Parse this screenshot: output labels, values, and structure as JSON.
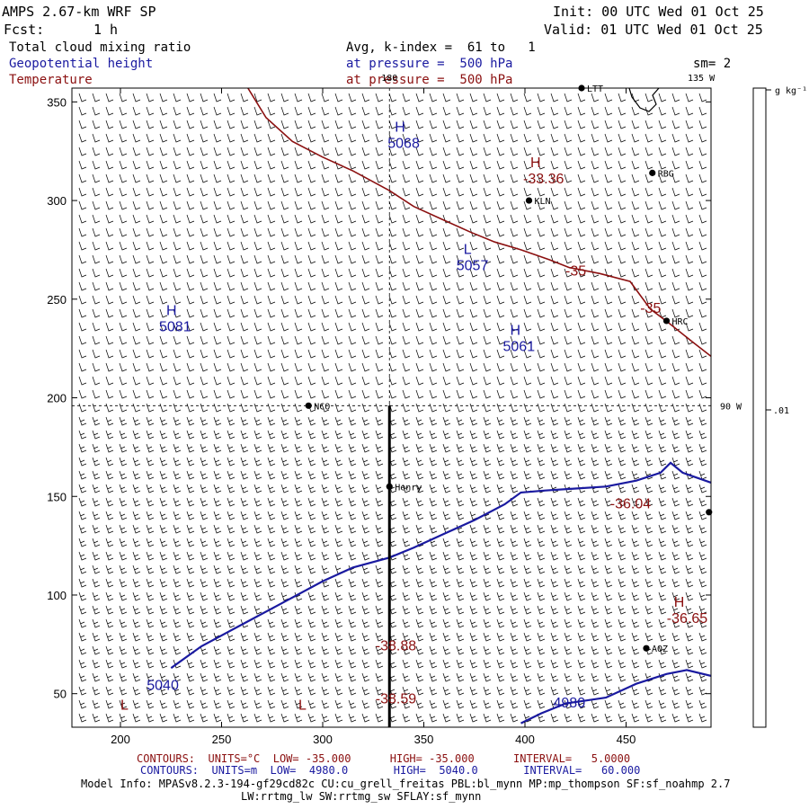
{
  "header": {
    "model_title": "AMPS 2.67-km WRF SP",
    "init": "Init: 00 UTC Wed 01 Oct 25",
    "fcst_label": "Fcst:",
    "fcst_value": "1 h",
    "valid": "Valid: 01 UTC Wed 01 Oct 25"
  },
  "fields": {
    "cloud_label": "Total cloud mixing ratio",
    "cloud_desc": "Avg, k-index =  61 to   1",
    "height_label": "Geopotential height",
    "height_desc": "at pressure =  500 hPa",
    "temp_label": "Temperature",
    "temp_desc": "at pressure =  500 hPa",
    "sm_label": "sm= 2"
  },
  "colorbar": {
    "units": "g kg⁻¹",
    "value_label": ".01"
  },
  "footer": {
    "temp_contours": "CONTOURS:  UNITS=°C  LOW= -35.000      HIGH= -35.000      INTERVAL=   5.0000",
    "height_contours": "CONTOURS:  UNITS=m  LOW=  4980.0       HIGH=  5040.0       INTERVAL=   60.000",
    "model_info_1": "Model Info: MPASv8.2.3-194-gf29cd82c CU:cu_grell_freitas PBL:bl_mynn MP:mp_thompson SF:sf_noahmp 2.7",
    "model_info_2": "LW:rrtmg_lw SW:rrtmg_sw SFLAY:sf_mynn"
  },
  "colors": {
    "height": "#1a1aa0",
    "temperature": "#8b1010",
    "text": "#000000"
  },
  "chart_data": {
    "type": "line",
    "x_ticks": [
      200,
      250,
      300,
      350,
      400,
      450
    ],
    "y_ticks": [
      50,
      100,
      150,
      200,
      250,
      300,
      350
    ],
    "xlim": [
      176,
      492
    ],
    "ylim": [
      33,
      357
    ],
    "grid": false,
    "graticule": {
      "lon_180_x": 333,
      "lon_180_label": "180",
      "lon_90w_y": 196,
      "lon_90w_label": "90 W",
      "lon_135w_label": "135 W"
    },
    "cross_section_line": {
      "x": 333,
      "y_from": 196,
      "y_to": 33
    },
    "series": [
      {
        "kind": "temperature",
        "points": [
          [
            263,
            357
          ],
          [
            272,
            342
          ],
          [
            285,
            330
          ],
          [
            300,
            322
          ],
          [
            315,
            315
          ],
          [
            333,
            305
          ],
          [
            345,
            297
          ],
          [
            360,
            290
          ],
          [
            373,
            284
          ],
          [
            385,
            279
          ],
          [
            398,
            275
          ],
          [
            412,
            270
          ],
          [
            422,
            266
          ],
          [
            437,
            263
          ],
          [
            452,
            259
          ],
          [
            462,
            245
          ],
          [
            471,
            238
          ],
          [
            482,
            229
          ],
          [
            492,
            221
          ]
        ]
      },
      {
        "kind": "height",
        "points": [
          [
            225,
            63
          ],
          [
            240,
            74
          ],
          [
            260,
            85
          ],
          [
            280,
            96
          ],
          [
            300,
            107
          ],
          [
            315,
            114
          ],
          [
            333,
            119
          ],
          [
            345,
            124
          ],
          [
            360,
            131
          ],
          [
            375,
            138
          ],
          [
            390,
            146
          ],
          [
            398,
            152
          ],
          [
            410,
            153
          ],
          [
            425,
            154
          ],
          [
            440,
            155
          ],
          [
            455,
            158
          ],
          [
            467,
            162
          ],
          [
            472,
            167
          ],
          [
            478,
            162
          ],
          [
            492,
            157
          ]
        ]
      },
      {
        "kind": "height",
        "points": [
          [
            398,
            35
          ],
          [
            408,
            40
          ],
          [
            420,
            45
          ],
          [
            440,
            48
          ],
          [
            455,
            55
          ],
          [
            470,
            60
          ],
          [
            480,
            62
          ],
          [
            492,
            59
          ]
        ]
      }
    ],
    "stations": [
      {
        "name": "RBG",
        "x": 463,
        "y": 314
      },
      {
        "name": "KLN",
        "x": 402,
        "y": 300
      },
      {
        "name": "HRC",
        "x": 470,
        "y": 239
      },
      {
        "name": "NCO",
        "x": 293,
        "y": 196
      },
      {
        "name": "Henry",
        "x": 333,
        "y": 155
      },
      {
        "name": "AOZ",
        "x": 460,
        "y": 73
      },
      {
        "name": "LTT",
        "x": 428,
        "y": 357
      },
      {
        "name": "",
        "x": 491,
        "y": 142
      }
    ],
    "extrema": [
      {
        "symbol": "H",
        "value": "5068",
        "kind": "height",
        "x": 333,
        "y": 335
      },
      {
        "symbol": "L",
        "value": "5057",
        "kind": "height",
        "x": 367,
        "y": 273
      },
      {
        "symbol": "H",
        "value": "5081",
        "kind": "height",
        "x": 220,
        "y": 242
      },
      {
        "symbol": "H",
        "value": "5061",
        "kind": "height",
        "x": 390,
        "y": 232
      },
      {
        "symbol": "H",
        "value": "-33.36",
        "kind": "temperature",
        "x": 400,
        "y": 317
      },
      {
        "symbol": "H",
        "value": "-36.65",
        "kind": "temperature",
        "x": 471,
        "y": 94
      },
      {
        "symbol": "",
        "value": "-36.04",
        "kind": "temperature",
        "x": 443,
        "y": 144
      },
      {
        "symbol": "",
        "value": "-38.88",
        "kind": "temperature",
        "x": 327,
        "y": 72
      },
      {
        "symbol": "",
        "value": "-38.59",
        "kind": "temperature",
        "x": 327,
        "y": 45
      },
      {
        "symbol": "L",
        "value": "",
        "kind": "temperature",
        "x": 200,
        "y": 42
      },
      {
        "symbol": "L",
        "value": "",
        "kind": "temperature",
        "x": 288,
        "y": 42
      }
    ],
    "contour_labels": [
      {
        "text": "-35",
        "kind": "temperature",
        "x": 420,
        "y": 262
      },
      {
        "text": "-35",
        "kind": "temperature",
        "x": 457,
        "y": 243
      },
      {
        "text": "5040",
        "kind": "height",
        "x": 213,
        "y": 52
      },
      {
        "text": "4980",
        "kind": "height",
        "x": 414,
        "y": 43
      }
    ]
  }
}
